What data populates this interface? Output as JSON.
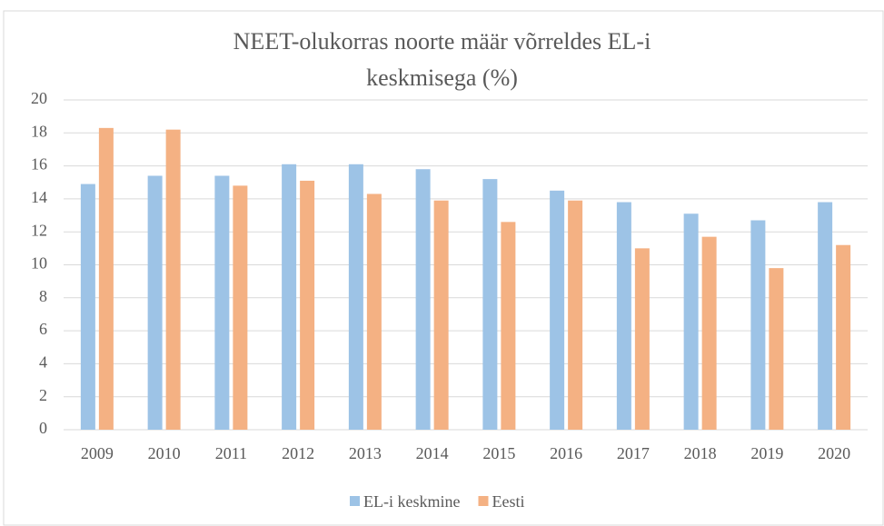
{
  "chart_data": {
    "type": "bar",
    "title": "NEET-olukorras noorte määr võrreldes EL-i keskmisega (%)",
    "categories": [
      "2009",
      "2010",
      "2011",
      "2012",
      "2013",
      "2014",
      "2015",
      "2016",
      "2017",
      "2018",
      "2019",
      "2020"
    ],
    "series": [
      {
        "name": "EL-i keskmine",
        "color": "#9dc3e6",
        "values": [
          14.9,
          15.4,
          15.4,
          16.1,
          16.1,
          15.8,
          15.2,
          14.5,
          13.8,
          13.1,
          12.7,
          13.8
        ]
      },
      {
        "name": "Eesti",
        "color": "#f4b183",
        "values": [
          18.3,
          18.2,
          14.8,
          15.1,
          14.3,
          13.9,
          12.6,
          13.9,
          11.0,
          11.7,
          9.8,
          11.2
        ]
      }
    ],
    "ylim": [
      0,
      20
    ],
    "yticks": [
      0,
      2,
      4,
      6,
      8,
      10,
      12,
      14,
      16,
      18,
      20
    ],
    "grid": true,
    "legend": "bottom"
  }
}
